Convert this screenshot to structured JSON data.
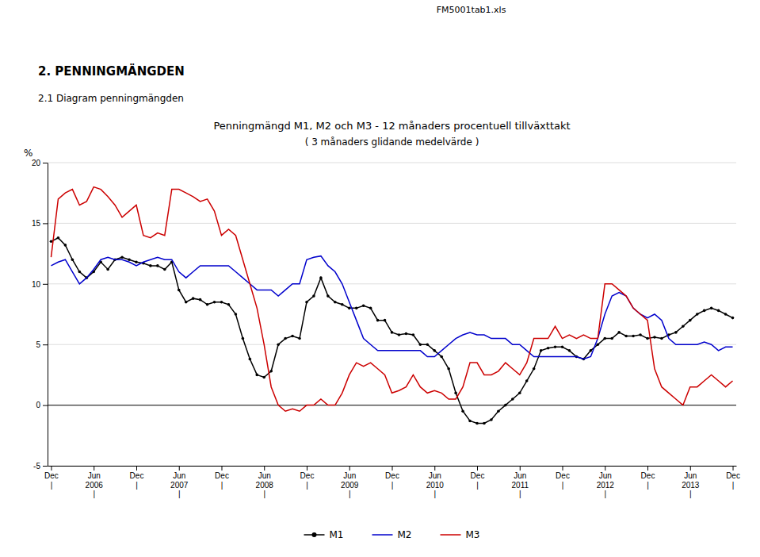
{
  "chart_data": {
    "type": "line",
    "title": "Penningmängd M1, M2 och M3 - 12 månaders procentuell tillväxttakt",
    "subtitle": "( 3 månaders glidande medelvärde )",
    "annotations": [
      "FM5001tab1.xls",
      "2.  PENNINGMÄNGDEN",
      "2.1 Diagram penningmängden"
    ],
    "ylabel": "%",
    "categories": [
      "Dec\n|",
      null,
      null,
      null,
      null,
      null,
      "Jun\n2006\n|",
      null,
      null,
      null,
      null,
      null,
      "Dec\n|",
      null,
      null,
      null,
      null,
      null,
      "Jun\n2007\n|",
      null,
      null,
      null,
      null,
      null,
      "Dec\n|",
      null,
      null,
      null,
      null,
      null,
      "Jun\n2008\n|",
      null,
      null,
      null,
      null,
      null,
      "Dec\n|",
      null,
      null,
      null,
      null,
      null,
      "Jun\n2009\n|",
      null,
      null,
      null,
      null,
      null,
      "Dec\n|",
      null,
      null,
      null,
      null,
      null,
      "Jun\n2010\n|",
      null,
      null,
      null,
      null,
      null,
      "Dec\n|",
      null,
      null,
      null,
      null,
      null,
      "Jun\n2011\n|",
      null,
      null,
      null,
      null,
      null,
      "Dec\n|",
      null,
      null,
      null,
      null,
      null,
      "Jun\n2012\n|",
      null,
      null,
      null,
      null,
      null,
      "Dec\n|",
      null,
      null,
      null,
      null,
      null,
      "Jun\n2013\n|",
      null,
      null,
      null,
      null,
      null,
      "Dec\n|"
    ],
    "series": [
      {
        "name": "M1",
        "color": "#000000",
        "marker": "circle",
        "values": [
          13.5,
          13.8,
          13.2,
          12.0,
          11.0,
          10.5,
          11.0,
          11.8,
          11.2,
          12.0,
          12.2,
          12.0,
          11.8,
          11.7,
          11.5,
          11.5,
          11.2,
          11.8,
          9.5,
          8.5,
          8.8,
          8.7,
          8.3,
          8.5,
          8.5,
          8.3,
          7.5,
          5.5,
          3.8,
          2.5,
          2.3,
          2.8,
          5.0,
          5.5,
          5.7,
          5.5,
          8.5,
          9.0,
          10.5,
          9.0,
          8.5,
          8.3,
          8.0,
          8.0,
          8.2,
          8.0,
          7.0,
          7.0,
          6.0,
          5.8,
          5.9,
          5.8,
          5.0,
          5.0,
          4.5,
          4.0,
          3.0,
          1.0,
          -0.5,
          -1.3,
          -1.5,
          -1.5,
          -1.2,
          -0.5,
          0.0,
          0.5,
          1.0,
          2.0,
          3.0,
          4.5,
          4.7,
          4.8,
          4.8,
          4.5,
          4.0,
          3.8,
          4.5,
          5.0,
          5.5,
          5.5,
          6.0,
          5.7,
          5.7,
          5.8,
          5.5,
          5.6,
          5.5,
          5.8,
          6.0,
          6.5,
          7.0,
          7.5,
          7.8,
          8.0,
          7.8,
          7.5,
          7.2
        ]
      },
      {
        "name": "M2",
        "color": "#0000cc",
        "values": [
          11.5,
          11.8,
          12.0,
          11.0,
          10.0,
          10.5,
          11.2,
          12.0,
          12.2,
          12.0,
          12.0,
          11.8,
          11.5,
          11.8,
          12.0,
          12.2,
          12.0,
          12.0,
          11.0,
          10.5,
          11.0,
          11.5,
          11.5,
          11.5,
          11.5,
          11.5,
          11.0,
          10.5,
          10.0,
          9.5,
          9.5,
          9.5,
          9.0,
          9.5,
          10.0,
          10.0,
          12.0,
          12.2,
          12.3,
          11.5,
          11.0,
          10.0,
          8.5,
          7.0,
          5.5,
          5.0,
          4.5,
          4.5,
          4.5,
          4.5,
          4.5,
          4.5,
          4.5,
          4.0,
          4.0,
          4.5,
          5.0,
          5.5,
          5.8,
          6.0,
          5.8,
          5.8,
          5.5,
          5.5,
          5.5,
          5.0,
          5.0,
          4.5,
          4.0,
          4.0,
          4.0,
          4.0,
          4.0,
          4.0,
          4.0,
          3.8,
          4.0,
          5.5,
          7.5,
          9.0,
          9.3,
          9.0,
          8.0,
          7.5,
          7.2,
          7.5,
          7.0,
          5.5,
          5.0,
          5.0,
          5.0,
          5.0,
          5.2,
          5.0,
          4.5,
          4.8,
          4.8
        ]
      },
      {
        "name": "M3",
        "color": "#cc0000",
        "values": [
          12.2,
          17.0,
          17.5,
          17.8,
          16.5,
          16.8,
          18.0,
          17.8,
          17.2,
          16.5,
          15.5,
          16.0,
          16.5,
          14.0,
          13.8,
          14.2,
          14.0,
          17.8,
          17.8,
          17.5,
          17.2,
          16.8,
          17.0,
          16.0,
          14.0,
          14.5,
          14.0,
          12.0,
          10.0,
          8.0,
          5.0,
          1.5,
          0.0,
          -0.5,
          -0.3,
          -0.5,
          0.0,
          0.0,
          0.5,
          0.0,
          0.0,
          1.0,
          2.5,
          3.5,
          3.2,
          3.5,
          3.0,
          2.5,
          1.0,
          1.2,
          1.5,
          2.5,
          1.5,
          1.0,
          1.2,
          1.0,
          0.5,
          0.5,
          1.5,
          3.5,
          3.5,
          2.5,
          2.5,
          2.8,
          3.5,
          3.0,
          2.5,
          3.5,
          5.5,
          5.5,
          5.5,
          6.5,
          5.5,
          5.8,
          5.5,
          5.8,
          5.5,
          5.5,
          10.0,
          10.0,
          9.5,
          9.0,
          8.0,
          7.5,
          7.0,
          3.0,
          1.5,
          1.0,
          0.5,
          0.0,
          1.5,
          1.5,
          2.0,
          2.5,
          2.0,
          1.5,
          2.0
        ]
      }
    ],
    "ylim": [
      -5,
      20
    ],
    "yticks": [
      -5,
      0,
      5,
      10,
      15,
      20
    ],
    "grid": true,
    "legend": "bottom"
  }
}
